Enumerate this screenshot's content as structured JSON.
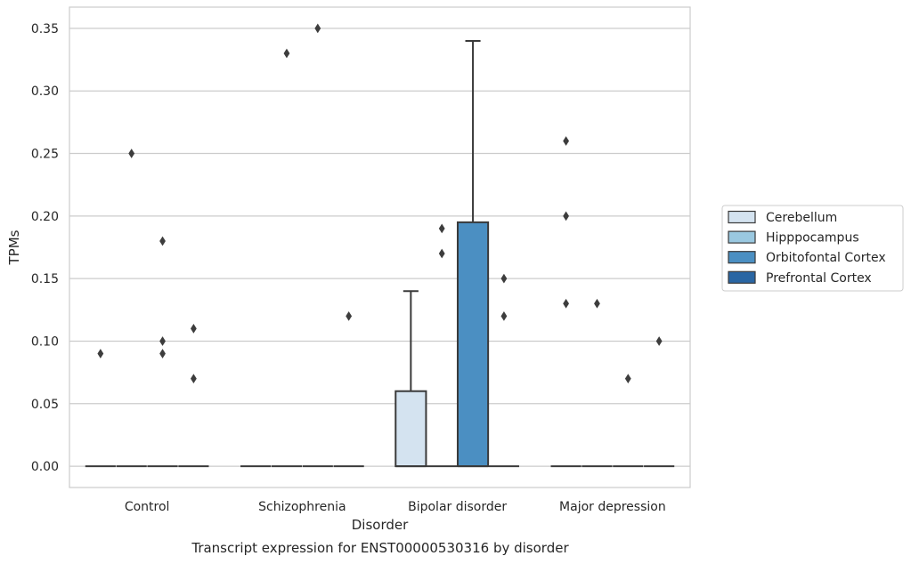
{
  "caption": "Transcript expression for ENST00000530316 by disorder",
  "chart_data": {
    "type": "box",
    "xlabel": "Disorder",
    "ylabel": "TPMs",
    "ylim": [
      -0.017,
      0.367
    ],
    "yticks": [
      "0.00",
      "0.05",
      "0.10",
      "0.15",
      "0.20",
      "0.25",
      "0.30",
      "0.35"
    ],
    "categories": [
      "Control",
      "Schizophrenia",
      "Bipolar disorder",
      "Major depression"
    ],
    "grid": "horizontal",
    "legend_position": "right",
    "series": [
      {
        "name": "Cerebellum",
        "color": "#d4e3f0"
      },
      {
        "name": "Hipppocampus",
        "color": "#9ac8e0"
      },
      {
        "name": "Orbitofontal Cortex",
        "color": "#4b8fc2"
      },
      {
        "name": "Prefrontal Cortex",
        "color": "#2a66a3"
      }
    ],
    "boxes": [
      {
        "category": 0,
        "series": 0,
        "q1": 0,
        "median": 0,
        "q3": 0,
        "whisker_low": 0,
        "whisker_high": 0,
        "outliers": [
          0.09
        ]
      },
      {
        "category": 0,
        "series": 1,
        "q1": 0,
        "median": 0,
        "q3": 0,
        "whisker_low": 0,
        "whisker_high": 0,
        "outliers": [
          0.25
        ]
      },
      {
        "category": 0,
        "series": 2,
        "q1": 0,
        "median": 0,
        "q3": 0,
        "whisker_low": 0,
        "whisker_high": 0,
        "outliers": [
          0.18,
          0.1,
          0.09
        ]
      },
      {
        "category": 0,
        "series": 3,
        "q1": 0,
        "median": 0,
        "q3": 0,
        "whisker_low": 0,
        "whisker_high": 0,
        "outliers": [
          0.11,
          0.07
        ]
      },
      {
        "category": 1,
        "series": 0,
        "q1": 0,
        "median": 0,
        "q3": 0,
        "whisker_low": 0,
        "whisker_high": 0,
        "outliers": []
      },
      {
        "category": 1,
        "series": 1,
        "q1": 0,
        "median": 0,
        "q3": 0,
        "whisker_low": 0,
        "whisker_high": 0,
        "outliers": [
          0.33
        ]
      },
      {
        "category": 1,
        "series": 2,
        "q1": 0,
        "median": 0,
        "q3": 0,
        "whisker_low": 0,
        "whisker_high": 0,
        "outliers": [
          0.35
        ]
      },
      {
        "category": 1,
        "series": 3,
        "q1": 0,
        "median": 0,
        "q3": 0,
        "whisker_low": 0,
        "whisker_high": 0,
        "outliers": [
          0.12
        ]
      },
      {
        "category": 2,
        "series": 0,
        "q1": 0,
        "median": 0,
        "q3": 0.06,
        "whisker_low": 0,
        "whisker_high": 0.14,
        "outliers": []
      },
      {
        "category": 2,
        "series": 1,
        "q1": 0,
        "median": 0,
        "q3": 0,
        "whisker_low": 0,
        "whisker_high": 0,
        "outliers": [
          0.17,
          0.19
        ]
      },
      {
        "category": 2,
        "series": 2,
        "q1": 0,
        "median": 0,
        "q3": 0.195,
        "whisker_low": 0,
        "whisker_high": 0.34,
        "outliers": []
      },
      {
        "category": 2,
        "series": 3,
        "q1": 0,
        "median": 0,
        "q3": 0,
        "whisker_low": 0,
        "whisker_high": 0,
        "outliers": [
          0.15,
          0.12
        ]
      },
      {
        "category": 3,
        "series": 0,
        "q1": 0,
        "median": 0,
        "q3": 0,
        "whisker_low": 0,
        "whisker_high": 0,
        "outliers": [
          0.26,
          0.2,
          0.13
        ]
      },
      {
        "category": 3,
        "series": 1,
        "q1": 0,
        "median": 0,
        "q3": 0,
        "whisker_low": 0,
        "whisker_high": 0,
        "outliers": [
          0.13
        ]
      },
      {
        "category": 3,
        "series": 2,
        "q1": 0,
        "median": 0,
        "q3": 0,
        "whisker_low": 0,
        "whisker_high": 0,
        "outliers": [
          0.07
        ]
      },
      {
        "category": 3,
        "series": 3,
        "q1": 0,
        "median": 0,
        "q3": 0,
        "whisker_low": 0,
        "whisker_high": 0,
        "outliers": [
          0.1
        ]
      }
    ]
  }
}
